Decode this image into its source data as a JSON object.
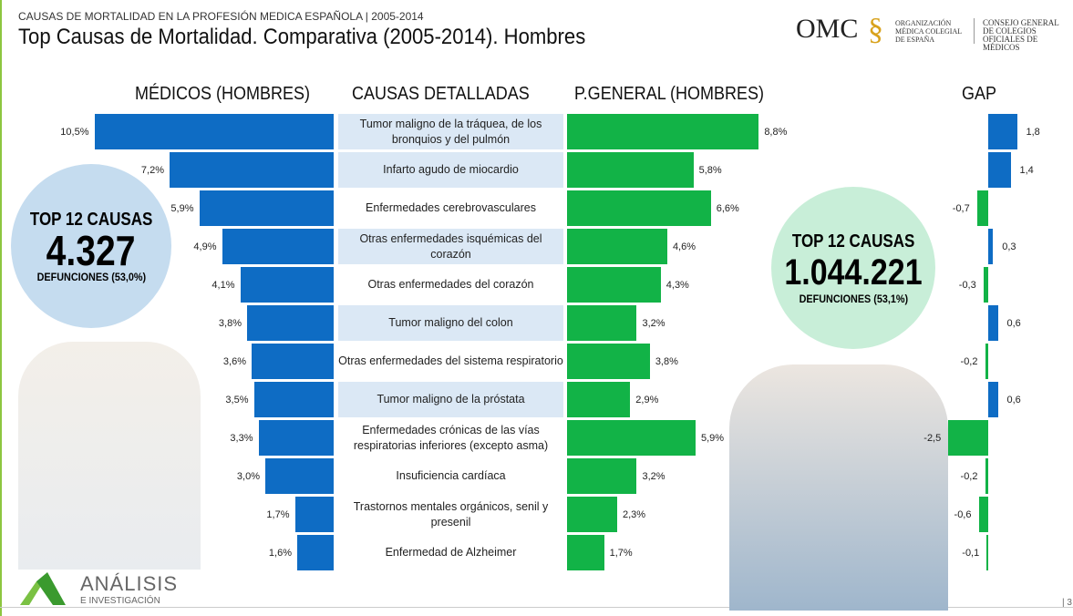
{
  "header": {
    "supertitle": "CAUSAS DE MORTALIDAD EN LA PROFESIÓN MEDICA ESPAÑOLA | 2005-2014",
    "title": "Top Causas de Mortalidad. Comparativa (2005-2014). Hombres"
  },
  "logo": {
    "omc": "OMC",
    "org": "ORGANIZACIÓN MÉDICA COLEGIAL DE ESPAÑA",
    "consejo": "CONSEJO GENERAL DE COLEGIOS OFICIALES DE MÉDICOS",
    "analisis": "ANÁLISIS",
    "investigacion": "E INVESTIGACIÓN"
  },
  "page_number": "| 3",
  "left_circle": {
    "title": "TOP 12 CAUSAS",
    "number": "4.327",
    "sub": "DEFUNCIONES (53,0%)"
  },
  "right_circle": {
    "title": "TOP 12 CAUSAS",
    "number": "1.044.221",
    "sub": "DEFUNCIONES (53,1%)"
  },
  "colors": {
    "medicos": "#0e6cc4",
    "general": "#12b347",
    "gap_pos": "#0e6cc4",
    "gap_neg": "#12b347",
    "shade": "#dbe8f5"
  },
  "chart_data": {
    "type": "bar",
    "column_headers": {
      "medicos": "MÉDICOS (HOMBRES)",
      "causas": "CAUSAS DETALLADAS",
      "general": "P.GENERAL (HOMBRES)",
      "gap": "GAP"
    },
    "categories": [
      "Tumor maligno de la tráquea, de los bronquios y del pulmón",
      "Infarto agudo de miocardio",
      "Enfermedades cerebrovasculares",
      "Otras enfermedades isquémicas del corazón",
      "Otras enfermedades del corazón",
      "Tumor maligno del colon",
      "Otras enfermedades del sistema respiratorio",
      "Tumor maligno de la próstata",
      "Enfermedades crónicas de las vías respiratorias inferiores (excepto asma)",
      "Insuficiencia cardíaca",
      "Trastornos mentales orgánicos, senil y presenil",
      "Enfermedad de Alzheimer"
    ],
    "series": [
      {
        "name": "MÉDICOS (HOMBRES)",
        "values": [
          10.5,
          7.2,
          5.9,
          4.9,
          4.1,
          3.8,
          3.6,
          3.5,
          3.3,
          3.0,
          1.7,
          1.6
        ],
        "labels": [
          "10,5%",
          "7,2%",
          "5,9%",
          "4,9%",
          "4,1%",
          "3,8%",
          "3,6%",
          "3,5%",
          "3,3%",
          "3,0%",
          "1,7%",
          "1,6%"
        ]
      },
      {
        "name": "P.GENERAL (HOMBRES)",
        "values": [
          8.8,
          5.8,
          6.6,
          4.6,
          4.3,
          3.2,
          3.8,
          2.9,
          5.9,
          3.2,
          2.3,
          1.7
        ],
        "labels": [
          "8,8%",
          "5,8%",
          "6,6%",
          "4,6%",
          "4,3%",
          "3,2%",
          "3,8%",
          "2,9%",
          "5,9%",
          "3,2%",
          "2,3%",
          "1,7%"
        ]
      },
      {
        "name": "GAP",
        "values": [
          1.8,
          1.4,
          -0.7,
          0.3,
          -0.3,
          0.6,
          -0.2,
          0.6,
          -2.5,
          -0.2,
          -0.6,
          -0.1
        ],
        "labels": [
          "1,8",
          "1,4",
          "-0,7",
          "0,3",
          "-0,3",
          "0,6",
          "-0,2",
          "0,6",
          "-2,5",
          "-0,2",
          "-0,6",
          "-0,1"
        ]
      }
    ],
    "shaded_rows": [
      0,
      1,
      3,
      5,
      7
    ]
  }
}
